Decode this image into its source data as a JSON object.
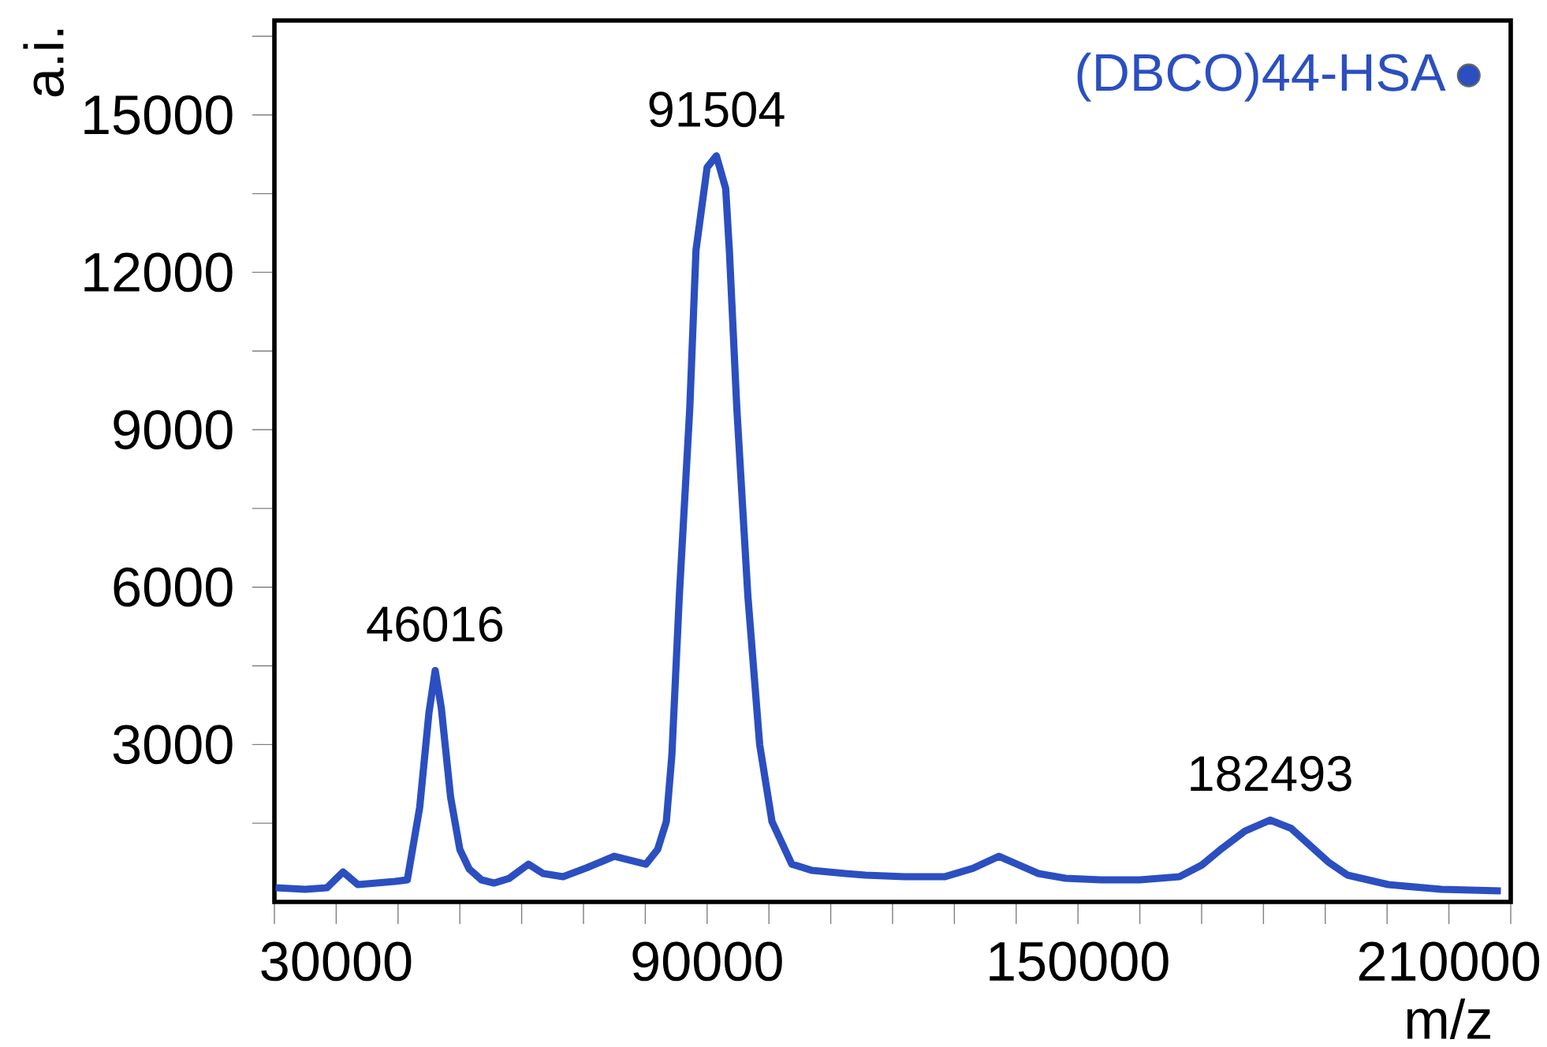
{
  "chart_data": {
    "type": "line",
    "xlabel": "m/z",
    "ylabel": "a.i.",
    "xlim": [
      20000,
      220000
    ],
    "ylim": [
      0,
      16800
    ],
    "xticks": [
      {
        "value": 20000,
        "label": null
      },
      30000,
      {
        "value": 40000,
        "label": null
      },
      {
        "value": 50000,
        "label": null
      },
      {
        "value": 60000,
        "label": null
      },
      {
        "value": 70000,
        "label": null
      },
      {
        "value": 80000,
        "label": null
      },
      90000,
      {
        "value": 100000,
        "label": null
      },
      {
        "value": 110000,
        "label": null
      },
      {
        "value": 120000,
        "label": null
      },
      {
        "value": 130000,
        "label": null
      },
      {
        "value": 140000,
        "label": null
      },
      150000,
      {
        "value": 160000,
        "label": null
      },
      {
        "value": 170000,
        "label": null
      },
      {
        "value": 180000,
        "label": null
      },
      {
        "value": 190000,
        "label": null
      },
      {
        "value": 200000,
        "label": null
      },
      210000,
      {
        "value": 220000,
        "label": null
      }
    ],
    "yticks": [
      {
        "value": 1500,
        "label": null
      },
      3000,
      {
        "value": 4500,
        "label": null
      },
      6000,
      {
        "value": 7500,
        "label": null
      },
      9000,
      {
        "value": 10500,
        "label": null
      },
      12000,
      {
        "value": 13500,
        "label": null
      },
      15000,
      {
        "value": 16500,
        "label": null
      }
    ],
    "legend": "top right",
    "grid": false,
    "series": [
      {
        "name": "(DBCO)44-HSA",
        "color": "#2b4fc0",
        "x": [
          20200,
          25000,
          28500,
          31100,
          33500,
          36500,
          39500,
          41500,
          43500,
          45000,
          46016,
          47000,
          48500,
          50000,
          51500,
          53500,
          55500,
          58000,
          61100,
          63500,
          66700,
          70500,
          75000,
          80100,
          82000,
          83400,
          84300,
          85500,
          87200,
          88200,
          90000,
          91504,
          93000,
          93600,
          94800,
          96600,
          98500,
          100500,
          103700,
          107000,
          112400,
          115600,
          122000,
          128400,
          133000,
          137200,
          140500,
          143600,
          148000,
          153700,
          160000,
          166400,
          170000,
          173300,
          177000,
          181100,
          184500,
          187500,
          190500,
          193600,
          200200,
          208800,
          218400
        ],
        "values": [
          270,
          240,
          270,
          570,
          330,
          360,
          390,
          420,
          1800,
          3600,
          4410,
          3700,
          2000,
          1000,
          630,
          420,
          360,
          450,
          720,
          540,
          480,
          650,
          870,
          720,
          1000,
          1530,
          2800,
          5820,
          9420,
          12420,
          14000,
          14220,
          13600,
          12420,
          9420,
          5820,
          3000,
          1530,
          720,
          600,
          540,
          510,
          480,
          480,
          640,
          870,
          700,
          540,
          450,
          420,
          420,
          480,
          700,
          1020,
          1350,
          1560,
          1400,
          1080,
          760,
          510,
          330,
          240,
          210
        ]
      }
    ],
    "annotations": [
      {
        "text": "46016",
        "x": 46016,
        "y": 4410
      },
      {
        "text": "91504",
        "x": 91504,
        "y": 14220
      },
      {
        "text": "182493",
        "x": 181100,
        "y": 1560
      }
    ]
  }
}
